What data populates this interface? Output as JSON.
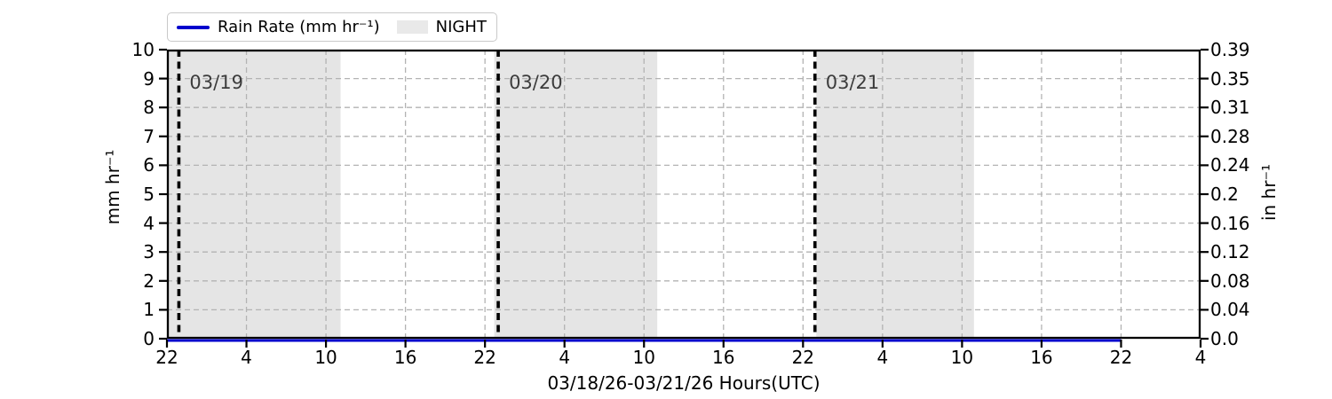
{
  "chart_data": {
    "type": "line",
    "title": "",
    "xlabel": "03/18/26-03/21/26  Hours(UTC)",
    "ylabel_left": "mm hr⁻¹",
    "ylabel_right": "in hr⁻¹",
    "xlim_hours": [
      0,
      78
    ],
    "x_ticks": [
      {
        "hour": 0,
        "label": "22"
      },
      {
        "hour": 6,
        "label": "4"
      },
      {
        "hour": 12,
        "label": "10"
      },
      {
        "hour": 18,
        "label": "16"
      },
      {
        "hour": 24,
        "label": "22"
      },
      {
        "hour": 30,
        "label": "4"
      },
      {
        "hour": 36,
        "label": "10"
      },
      {
        "hour": 42,
        "label": "16"
      },
      {
        "hour": 48,
        "label": "22"
      },
      {
        "hour": 54,
        "label": "4"
      },
      {
        "hour": 60,
        "label": "10"
      },
      {
        "hour": 66,
        "label": "16"
      },
      {
        "hour": 72,
        "label": "22"
      },
      {
        "hour": 78,
        "label": "4"
      }
    ],
    "ylim_left": [
      0,
      10
    ],
    "y_ticks_left": [
      {
        "value": 0,
        "label": "0"
      },
      {
        "value": 1,
        "label": "1"
      },
      {
        "value": 2,
        "label": "2"
      },
      {
        "value": 3,
        "label": "3"
      },
      {
        "value": 4,
        "label": "4"
      },
      {
        "value": 5,
        "label": "5"
      },
      {
        "value": 6,
        "label": "6"
      },
      {
        "value": 7,
        "label": "7"
      },
      {
        "value": 8,
        "label": "8"
      },
      {
        "value": 9,
        "label": "9"
      },
      {
        "value": 10,
        "label": "10"
      }
    ],
    "y_ticks_right": [
      {
        "value": 0,
        "label": "0.0"
      },
      {
        "value": 1,
        "label": "0.04"
      },
      {
        "value": 2,
        "label": "0.08"
      },
      {
        "value": 3,
        "label": "0.12"
      },
      {
        "value": 4,
        "label": "0.16"
      },
      {
        "value": 5,
        "label": "0.2"
      },
      {
        "value": 6,
        "label": "0.24"
      },
      {
        "value": 7,
        "label": "0.28"
      },
      {
        "value": 8,
        "label": "0.31"
      },
      {
        "value": 9,
        "label": "0.35"
      },
      {
        "value": 10,
        "label": "0.39"
      }
    ],
    "grid": true,
    "legend_position": "upper left",
    "legend": [
      {
        "label": "Rain Rate (mm hr⁻¹)",
        "type": "line",
        "color": "#0000cd"
      },
      {
        "label": "NIGHT",
        "type": "patch",
        "color": "#e9e9e9"
      }
    ],
    "series": [
      {
        "name": "Rain Rate (mm hr⁻¹)",
        "color": "#0000cd",
        "points": [
          {
            "hour": 0,
            "value": 0
          },
          {
            "hour": 72,
            "value": 0
          }
        ]
      }
    ],
    "night_bands_hours": [
      [
        0,
        13.1
      ],
      [
        24.7,
        37.0
      ],
      [
        49.0,
        60.9
      ]
    ],
    "day_change_lines": [
      {
        "hour": 0.9,
        "label": "03/19"
      },
      {
        "hour": 25.0,
        "label": "03/20"
      },
      {
        "hour": 48.9,
        "label": "03/21"
      }
    ],
    "colors": {
      "night_band": "#e5e5e5",
      "grid_line": "#b3b3b3",
      "day_change_line": "#000000",
      "rain_line": "#0000cd",
      "date_label": "#3c3c3c",
      "axis": "#000000"
    }
  }
}
